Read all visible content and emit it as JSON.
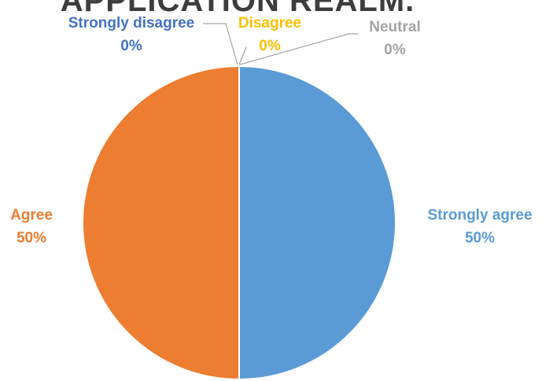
{
  "chart_data": {
    "type": "pie",
    "title": "APPLICATION REALM.",
    "categories": [
      "Strongly agree",
      "Agree",
      "Strongly disagree",
      "Disagree",
      "Neutral"
    ],
    "values": [
      50,
      50,
      0,
      0,
      0
    ],
    "labels": [
      {
        "category": "Strongly agree",
        "percent": "50%",
        "color": "#5b9bd5"
      },
      {
        "category": "Agree",
        "percent": "50%",
        "color": "#ed7d31"
      },
      {
        "category": "Strongly disagree",
        "percent": "0%",
        "color": "#4472c4"
      },
      {
        "category": "Disagree",
        "percent": "0%",
        "color": "#ffc000"
      },
      {
        "category": "Neutral",
        "percent": "0%",
        "color": "#a5a5a5"
      }
    ],
    "start_angle": "12 o'clock",
    "direction": "clockwise",
    "legend": "none",
    "data_labels": "category and percentage"
  }
}
